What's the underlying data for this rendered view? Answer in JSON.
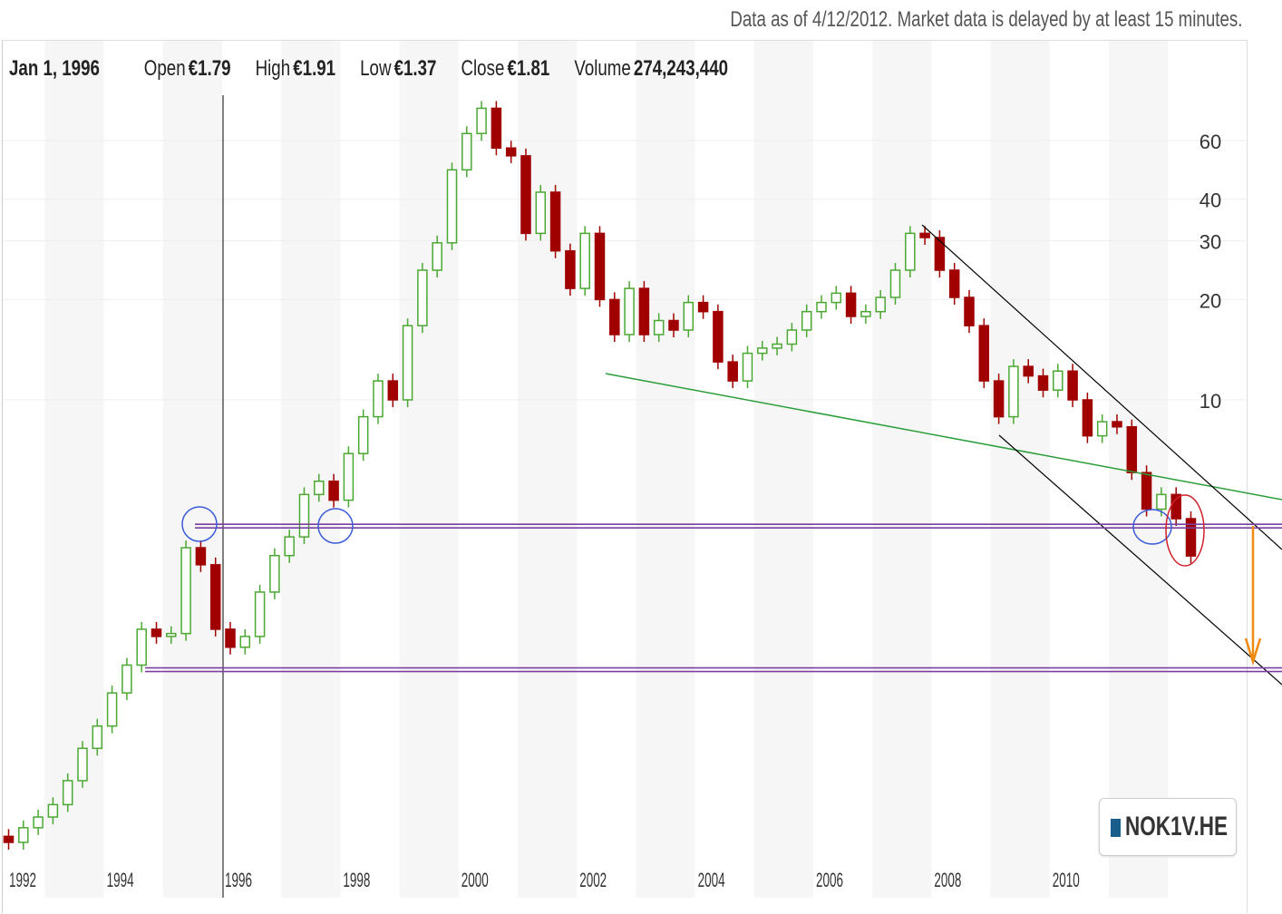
{
  "header": {
    "note": "Data as of 4/12/2012. Market data is delayed by at least 15 minutes."
  },
  "info": {
    "date": "Jan 1, 1996",
    "open_label": "Open",
    "open": "€1.79",
    "high_label": "High",
    "high": "€1.91",
    "low_label": "Low",
    "low": "€1.37",
    "close_label": "Close",
    "close": "€1.81",
    "volume_label": "Volume",
    "volume": "274,243,440"
  },
  "legend": {
    "symbol": "NOK1V.HE",
    "color": "#1a5e8c"
  },
  "chart_data": {
    "type": "candlestick",
    "title": "",
    "y_scale": "log",
    "y_ticks": [
      10,
      20,
      30,
      40,
      60
    ],
    "x_ticks": [
      "1992",
      "1994",
      "1996",
      "1998",
      "2000",
      "2002",
      "2004",
      "2006",
      "2008",
      "2010"
    ],
    "colors": {
      "up": "#4aa832",
      "down": "#a00000"
    },
    "grid": "alternating-year-bands",
    "series": {
      "t": [
        1992.0,
        1992.25,
        1992.5,
        1992.75,
        1993.0,
        1993.25,
        1993.5,
        1993.75,
        1994.0,
        1994.25,
        1994.5,
        1994.75,
        1995.0,
        1995.25,
        1995.5,
        1995.75,
        1996.0,
        1996.25,
        1996.5,
        1996.75,
        1997.0,
        1997.25,
        1997.5,
        1997.75,
        1998.0,
        1998.25,
        1998.5,
        1998.75,
        1999.0,
        1999.25,
        1999.5,
        1999.75,
        2000.0,
        2000.25,
        2000.5,
        2000.75,
        2001.0,
        2001.25,
        2001.5,
        2001.75,
        2002.0,
        2002.25,
        2002.5,
        2002.75,
        2003.0,
        2003.25,
        2003.5,
        2003.75,
        2004.0,
        2004.25,
        2004.5,
        2004.75,
        2005.0,
        2005.25,
        2005.5,
        2005.75,
        2006.0,
        2006.25,
        2006.5,
        2006.75,
        2007.0,
        2007.25,
        2007.5,
        2007.75,
        2008.0,
        2008.25,
        2008.5,
        2008.75,
        2009.0,
        2009.25,
        2009.5,
        2009.75,
        2010.0,
        2010.25,
        2010.5,
        2010.75,
        2011.0,
        2011.25,
        2011.5,
        2011.75,
        2012.0,
        2012.25
      ],
      "close": [
        0.49,
        0.47,
        0.52,
        0.56,
        0.61,
        0.72,
        0.9,
        1.05,
        1.32,
        1.6,
        2.05,
        1.95,
        1.99,
        3.6,
        3.2,
        2.05,
        1.81,
        1.95,
        2.65,
        3.41,
        3.88,
        5.2,
        5.7,
        5.0,
        6.9,
        8.9,
        11.4,
        10.0,
        16.7,
        24.5,
        29.6,
        49,
        63,
        75,
        57,
        54,
        31.6,
        42,
        28,
        21.6,
        31.6,
        20,
        15.7,
        21.6,
        15.7,
        17.3,
        16.2,
        19.6,
        18.4,
        13.0,
        11.4,
        13.8,
        14.3,
        14.7,
        16.2,
        18.4,
        19.6,
        20.9,
        17.8,
        18.4,
        20.3,
        24.5,
        31.6,
        30.7,
        24.5,
        20.3,
        16.7,
        11.4,
        8.9,
        12.6,
        11.8,
        10.7,
        12.2,
        10.0,
        7.8,
        8.6,
        8.3,
        6.05,
        4.7,
        5.2,
        4.4,
        3.4
      ]
    },
    "annotations": {
      "support_levels": [
        4.18,
        1.55
      ]
    }
  }
}
